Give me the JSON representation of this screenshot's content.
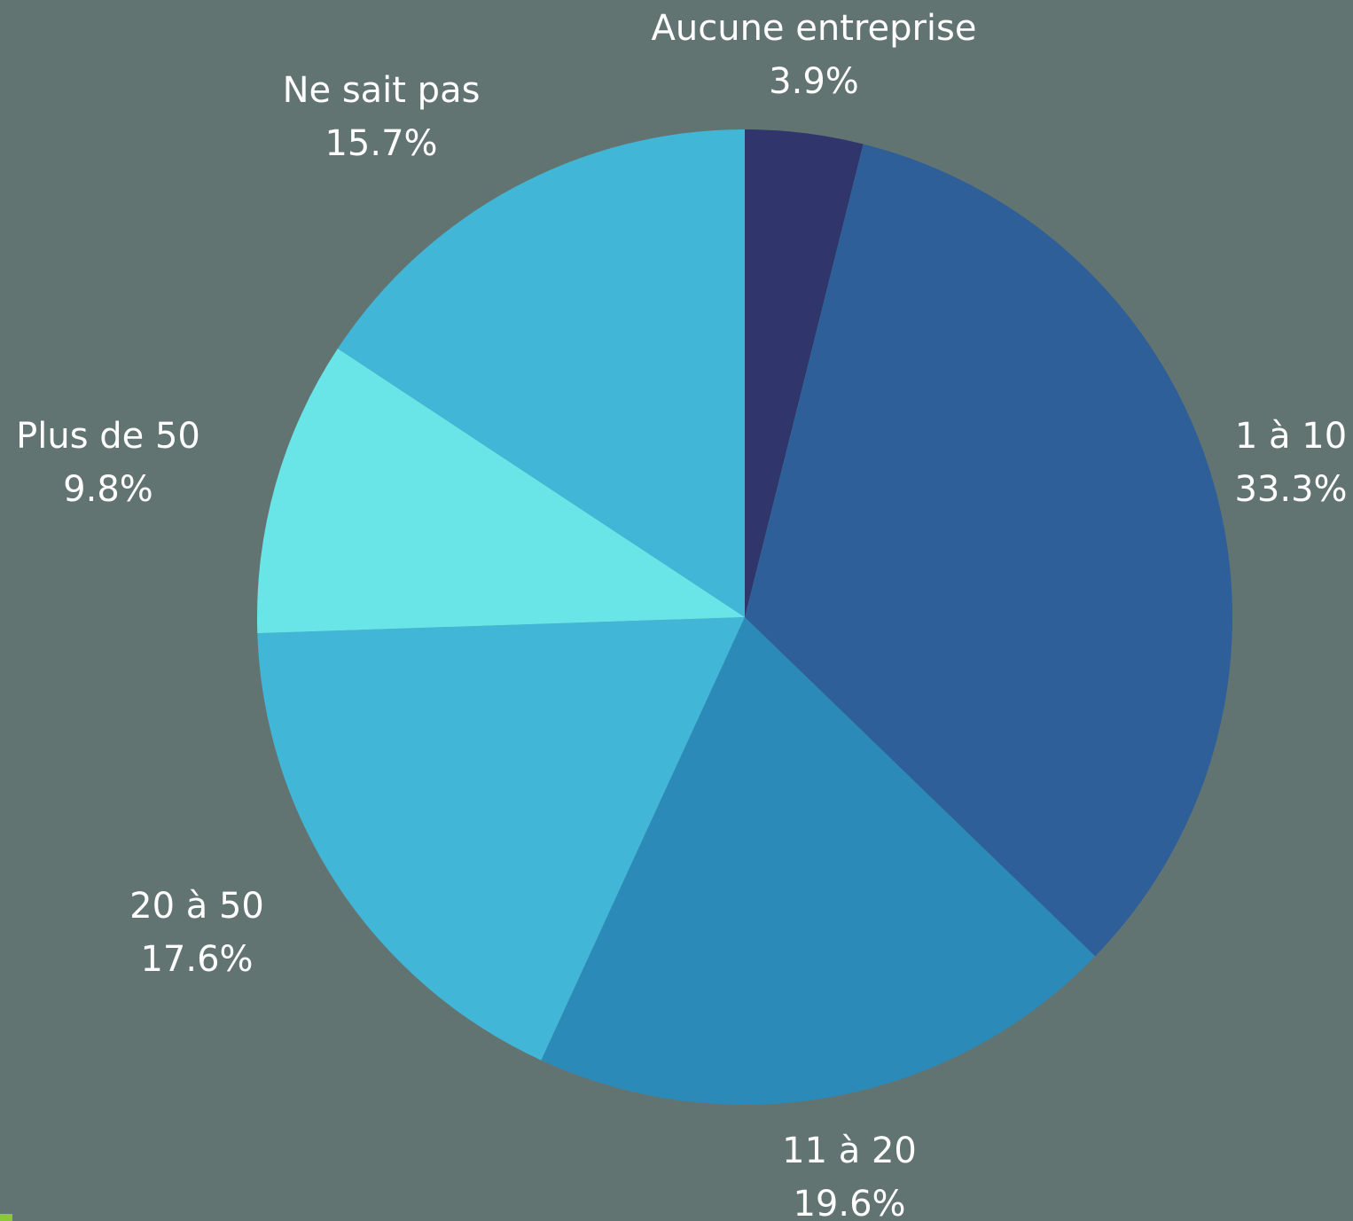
{
  "chart_data": {
    "type": "pie",
    "slices": [
      {
        "label": "Aucune entreprise",
        "value": 3.9,
        "value_label": "3.9%",
        "color": "#30356b"
      },
      {
        "label": "1 à 10",
        "value": 33.3,
        "value_label": "33.3%",
        "color": "#2e5f99"
      },
      {
        "label": "11 à 20",
        "value": 19.6,
        "value_label": "19.6%",
        "color": "#2c8ab8"
      },
      {
        "label": "20 à 50",
        "value": 17.6,
        "value_label": "17.6%",
        "color": "#41b6d6"
      },
      {
        "label": "Plus de 50",
        "value": 9.8,
        "value_label": "9.8%",
        "color": "#69e5e8"
      },
      {
        "label": "Ne sait pas",
        "value": 15.7,
        "value_label": "15.7%",
        "color": "#41b6d6"
      }
    ],
    "start_angle": "12 o'clock",
    "direction": "clockwise",
    "legend": "none",
    "background_color": "#627471",
    "label_color": "#ffffff"
  }
}
